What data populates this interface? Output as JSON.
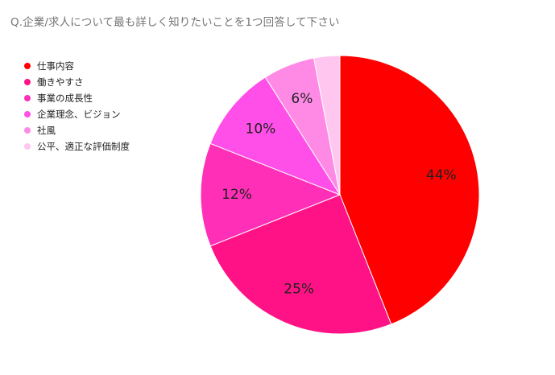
{
  "chart_data": {
    "type": "pie",
    "title": "Q.企業/求人について最も詳しく知りたいことを1つ回答して下さい",
    "legend_position": "left",
    "categories": [
      "仕事内容",
      "働きやすさ",
      "事業の成長性",
      "企業理念、ビジョン",
      "社風",
      "公平、適正な評価制度"
    ],
    "values": [
      44,
      25,
      12,
      10,
      6,
      3
    ],
    "labels": [
      "44%",
      "25%",
      "12%",
      "10%",
      "6%",
      ""
    ],
    "colors": [
      "#ff0000",
      "#ff1285",
      "#ff2fb7",
      "#ff4fe8",
      "#ff8ae6",
      "#ffc6ef"
    ]
  },
  "legend": {
    "items": [
      {
        "label": "仕事内容",
        "color": "#ff0000"
      },
      {
        "label": "働きやすさ",
        "color": "#ff1285"
      },
      {
        "label": "事業の成長性",
        "color": "#ff2fb7"
      },
      {
        "label": "企業理念、ビジョン",
        "color": "#ff4fe8"
      },
      {
        "label": "社風",
        "color": "#ff8ae6"
      },
      {
        "label": "公平、適正な評価制度",
        "color": "#ffc6ef"
      }
    ]
  }
}
